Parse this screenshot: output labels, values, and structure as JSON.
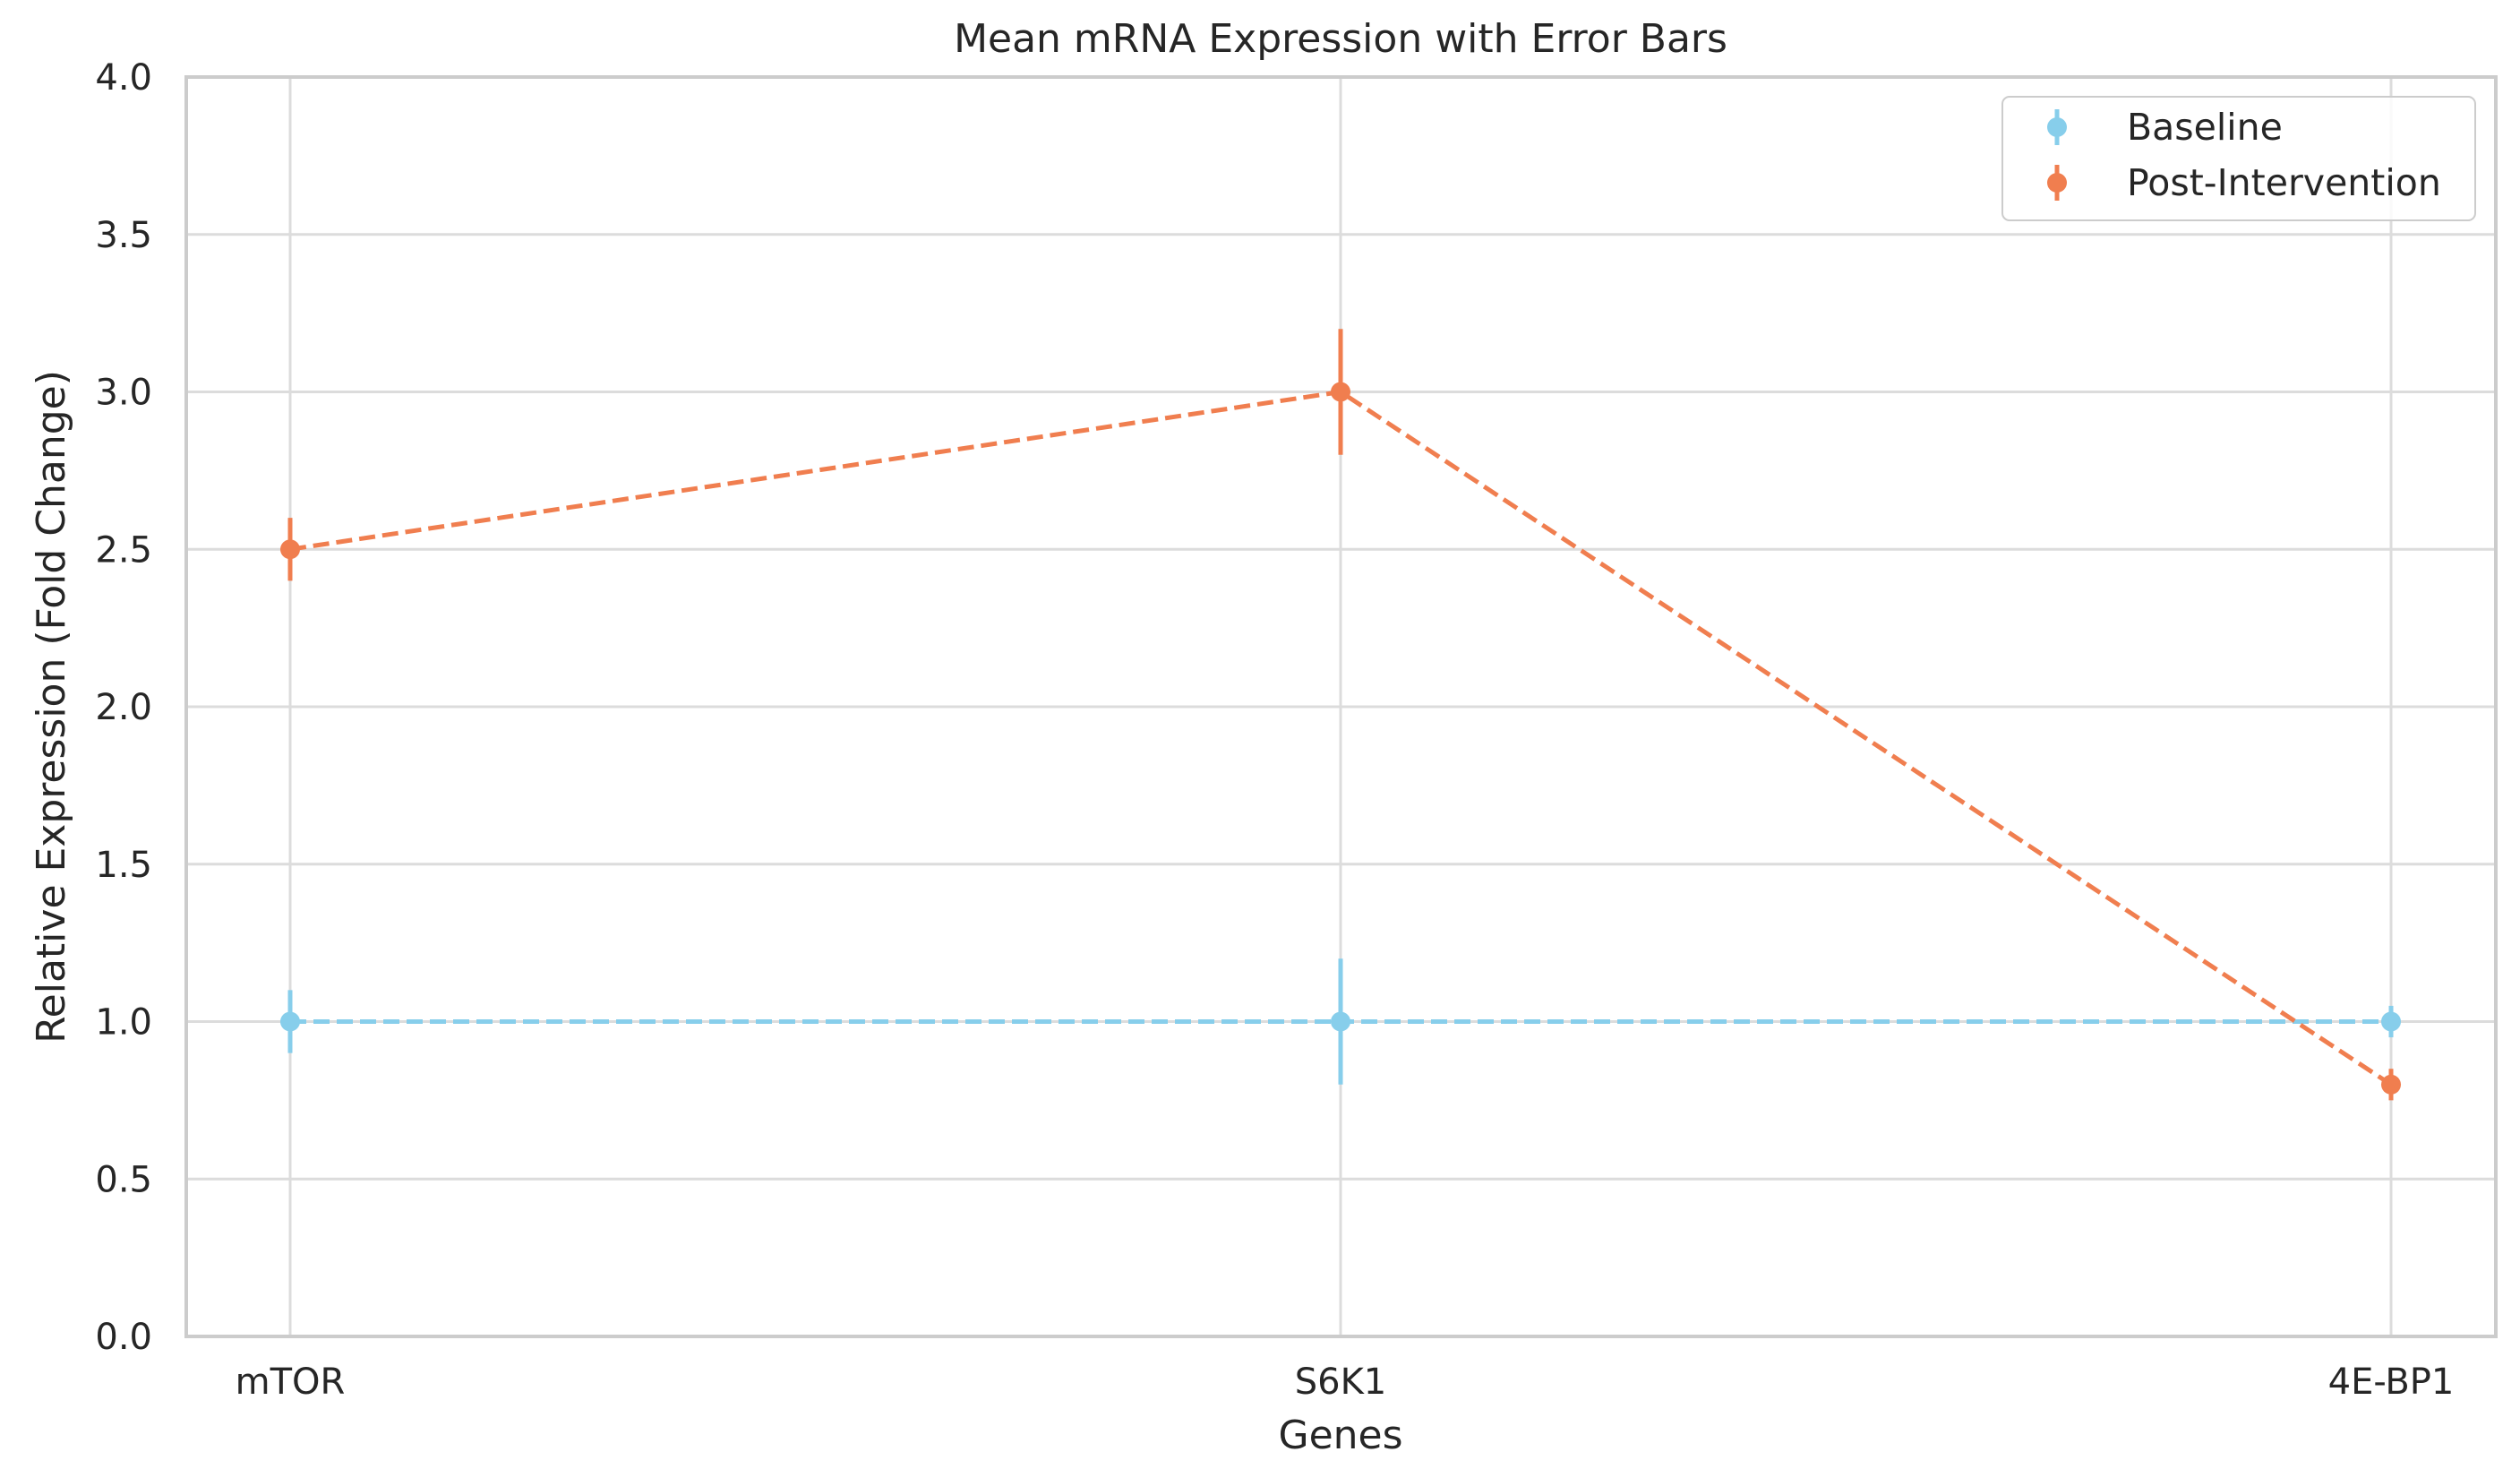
{
  "chart_data": {
    "type": "line",
    "title": "Mean mRNA Expression with Error Bars",
    "xlabel": "Genes",
    "ylabel": "Relative Expression (Fold Change)",
    "categories": [
      "mTOR",
      "S6K1",
      "4E-BP1"
    ],
    "ylim": [
      0,
      4
    ],
    "yticks": [
      "0.0",
      "0.5",
      "1.0",
      "1.5",
      "2.0",
      "2.5",
      "3.0",
      "3.5",
      "4.0"
    ],
    "grid": true,
    "legend_position": "top-right",
    "series": [
      {
        "name": "Baseline",
        "values": [
          1.0,
          1.0,
          1.0
        ],
        "errors": [
          0.1,
          0.2,
          0.05
        ],
        "color": "#87ceeb",
        "line_style": "dashed",
        "marker": "circle"
      },
      {
        "name": "Post-Intervention",
        "values": [
          2.5,
          3.0,
          0.8
        ],
        "errors": [
          0.1,
          0.2,
          0.05
        ],
        "color": "#f07e4f",
        "line_style": "dashed",
        "marker": "circle"
      }
    ]
  }
}
